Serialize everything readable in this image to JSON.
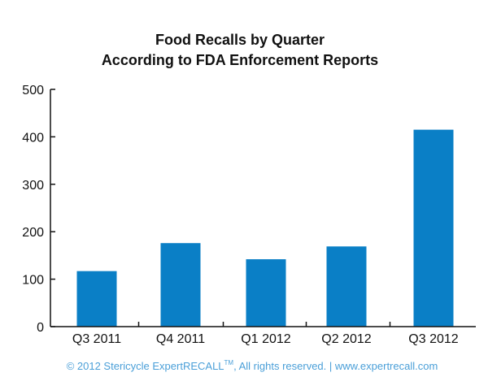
{
  "chart_data": {
    "type": "bar",
    "title": "Food Recalls by Quarter",
    "subtitle": "According to FDA Enforcement Reports",
    "categories": [
      "Q3 2011",
      "Q4 2011",
      "Q1 2012",
      "Q2 2012",
      "Q3 2012"
    ],
    "values": [
      117,
      176,
      142,
      169,
      415
    ],
    "ylim": [
      0,
      500
    ],
    "yticks": [
      0,
      100,
      200,
      300,
      400,
      500
    ],
    "xlabel": "",
    "ylabel": "",
    "grid": false,
    "bar_color": "#0a7fc6"
  },
  "footer": {
    "copyright_prefix": "© 2012 Stericycle ExpertRECALL",
    "trademark": "TM",
    "copyright_suffix": ", All rights reserved. | www.expertrecall.com",
    "color": "#4a9fd8"
  }
}
